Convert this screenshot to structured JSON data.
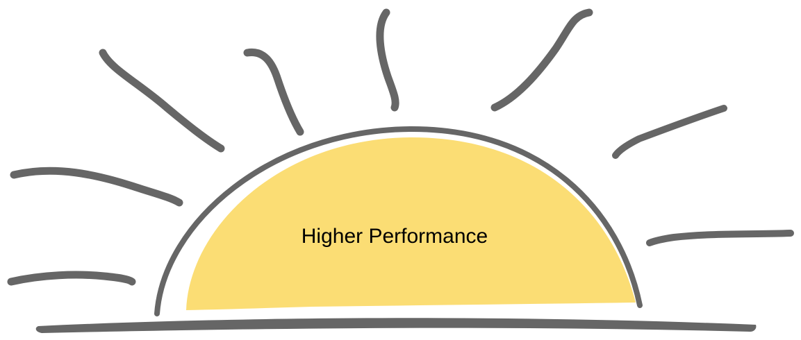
{
  "label": "Higher Performance"
}
